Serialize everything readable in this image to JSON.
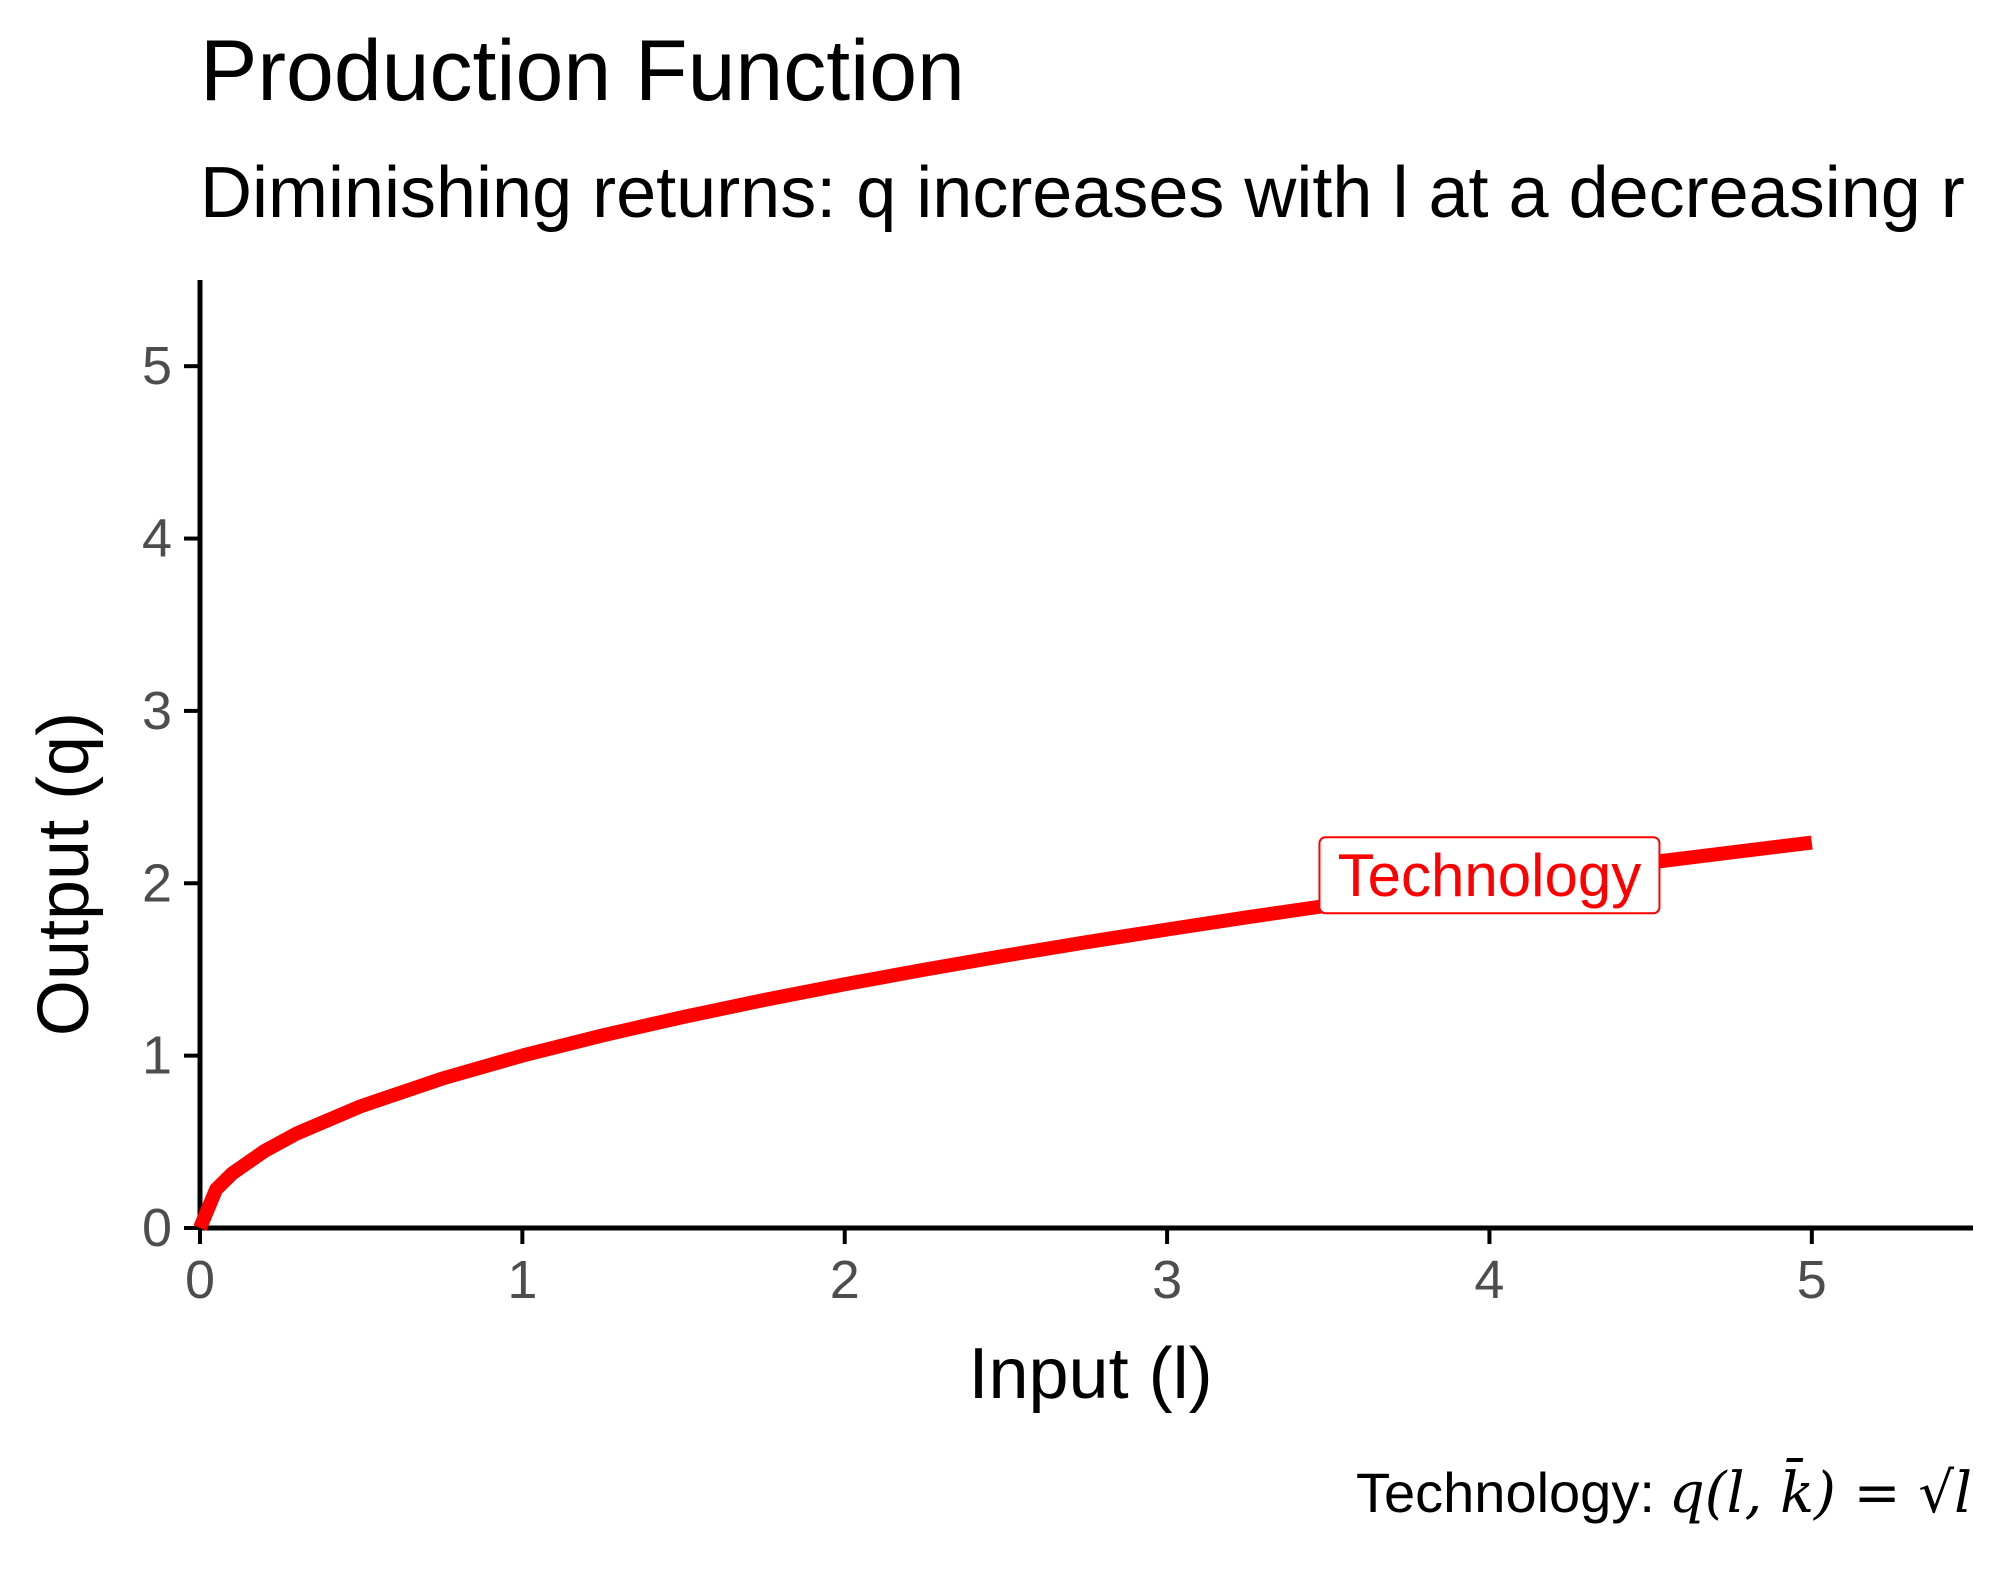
{
  "chart_data": {
    "type": "line",
    "title": "Production Function",
    "subtitle": "Diminishing returns: q increases with l at a decreasing r",
    "xlabel": "Input (l)",
    "ylabel": "Output (q)",
    "xlim": [
      0,
      5.5
    ],
    "ylim": [
      0,
      5.5
    ],
    "x_ticks": [
      "0",
      "1",
      "2",
      "3",
      "4",
      "5"
    ],
    "y_ticks": [
      "0",
      "1",
      "2",
      "3",
      "4",
      "5"
    ],
    "grid": false,
    "legend": "none",
    "series": [
      {
        "name": "Technology",
        "color": "#ff0000",
        "x": [
          0,
          0.05,
          0.1,
          0.2,
          0.3,
          0.5,
          0.75,
          1,
          1.25,
          1.5,
          1.75,
          2,
          2.25,
          2.5,
          2.75,
          3,
          3.25,
          3.5,
          3.75,
          4,
          4.25,
          4.5,
          4.75,
          5
        ],
        "y": [
          0,
          0.224,
          0.316,
          0.447,
          0.548,
          0.707,
          0.866,
          1.0,
          1.118,
          1.225,
          1.323,
          1.414,
          1.5,
          1.581,
          1.658,
          1.732,
          1.803,
          1.871,
          1.936,
          2.0,
          2.062,
          2.121,
          2.179,
          2.236
        ]
      }
    ],
    "annotations": [
      {
        "text": "Technology",
        "x": 4.0,
        "y": 2.0,
        "color": "#ff0000"
      }
    ],
    "caption_label": "Technology:",
    "caption_formula": "q(l, k̄) = √l"
  }
}
